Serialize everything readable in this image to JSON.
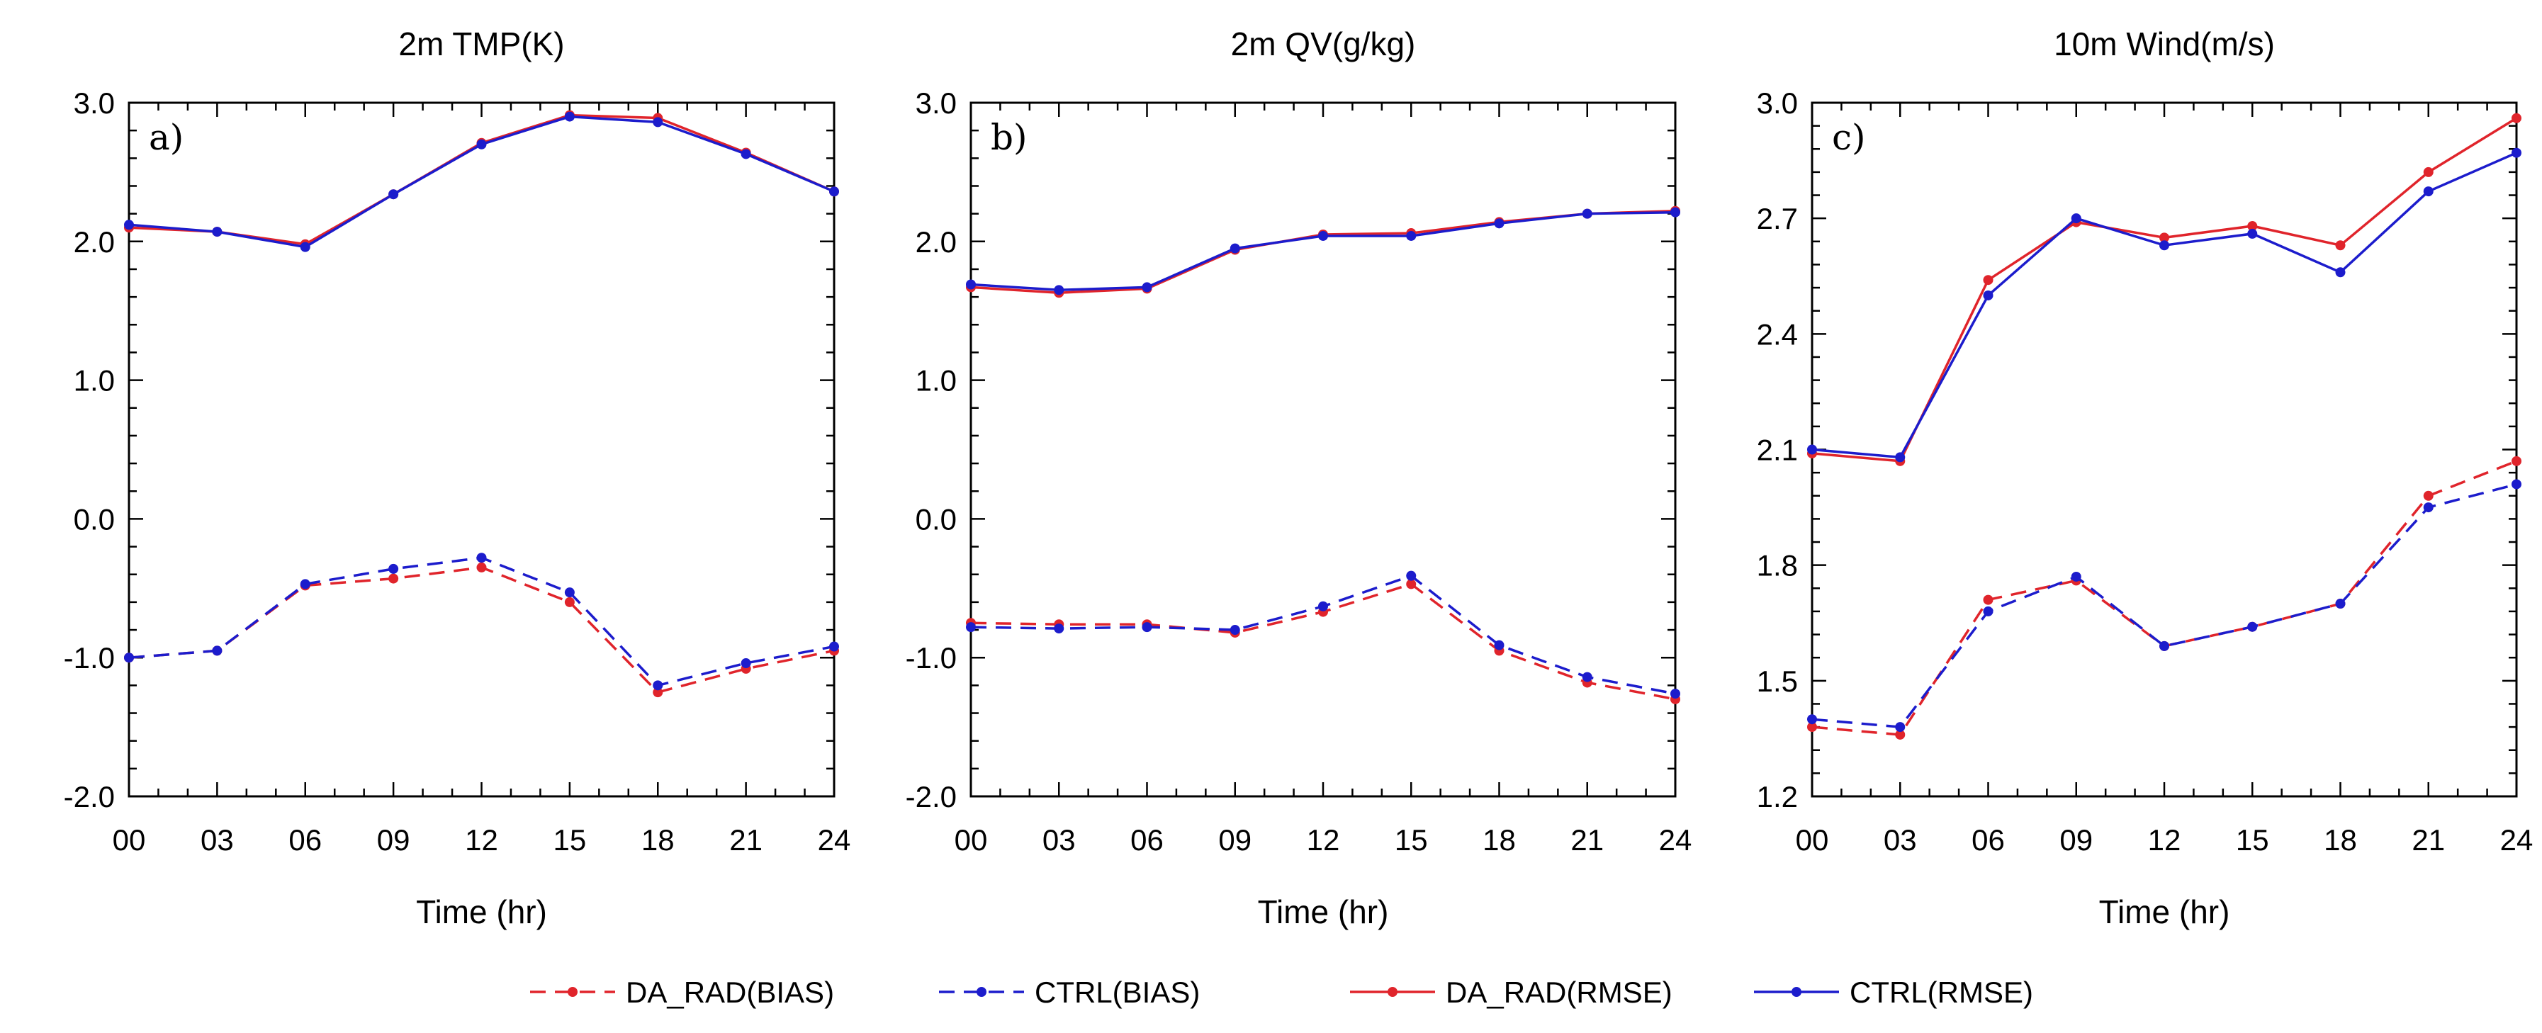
{
  "chart_data": [
    {
      "type": "line",
      "panel_label": "a)",
      "title": "2m TMP(K)",
      "xlabel": "Time (hr)",
      "ylabel": "",
      "ylim": [
        -2.0,
        3.0
      ],
      "yticks": [
        "-2.0",
        "-1.0",
        "0.0",
        "1.0",
        "2.0",
        "3.0"
      ],
      "x": [
        "00",
        "03",
        "06",
        "09",
        "12",
        "15",
        "18",
        "21",
        "24"
      ],
      "series": [
        {
          "name": "DA_RAD(BIAS)",
          "color": "#e0242b",
          "style": "dashed",
          "values": [
            -1.0,
            -0.95,
            -0.48,
            -0.43,
            -0.35,
            -0.6,
            -1.25,
            -1.08,
            -0.95
          ]
        },
        {
          "name": "CTRL(BIAS)",
          "color": "#1c1ccc",
          "style": "dashed",
          "values": [
            -1.0,
            -0.95,
            -0.47,
            -0.36,
            -0.28,
            -0.53,
            -1.2,
            -1.04,
            -0.92
          ]
        },
        {
          "name": "DA_RAD(RMSE)",
          "color": "#e0242b",
          "style": "solid",
          "values": [
            2.1,
            2.07,
            1.98,
            2.34,
            2.71,
            2.91,
            2.89,
            2.64,
            2.36
          ]
        },
        {
          "name": "CTRL(RMSE)",
          "color": "#1c1ccc",
          "style": "solid",
          "values": [
            2.12,
            2.07,
            1.96,
            2.34,
            2.7,
            2.9,
            2.86,
            2.63,
            2.36
          ]
        }
      ]
    },
    {
      "type": "line",
      "panel_label": "b)",
      "title": "2m QV(g/kg)",
      "xlabel": "Time (hr)",
      "ylabel": "",
      "ylim": [
        -2.0,
        3.0
      ],
      "yticks": [
        "-2.0",
        "-1.0",
        "0.0",
        "1.0",
        "2.0",
        "3.0"
      ],
      "x": [
        "00",
        "03",
        "06",
        "09",
        "12",
        "15",
        "18",
        "21",
        "24"
      ],
      "series": [
        {
          "name": "DA_RAD(BIAS)",
          "color": "#e0242b",
          "style": "dashed",
          "values": [
            -0.75,
            -0.76,
            -0.76,
            -0.82,
            -0.67,
            -0.47,
            -0.95,
            -1.18,
            -1.3
          ]
        },
        {
          "name": "CTRL(BIAS)",
          "color": "#1c1ccc",
          "style": "dashed",
          "values": [
            -0.78,
            -0.79,
            -0.78,
            -0.8,
            -0.63,
            -0.41,
            -0.91,
            -1.14,
            -1.26
          ]
        },
        {
          "name": "DA_RAD(RMSE)",
          "color": "#e0242b",
          "style": "solid",
          "values": [
            1.67,
            1.63,
            1.66,
            1.94,
            2.05,
            2.06,
            2.14,
            2.2,
            2.22
          ]
        },
        {
          "name": "CTRL(RMSE)",
          "color": "#1c1ccc",
          "style": "solid",
          "values": [
            1.69,
            1.65,
            1.67,
            1.95,
            2.04,
            2.04,
            2.13,
            2.2,
            2.21
          ]
        }
      ]
    },
    {
      "type": "line",
      "panel_label": "c)",
      "title": "10m Wind(m/s)",
      "xlabel": "Time (hr)",
      "ylabel": "",
      "ylim": [
        1.2,
        3.0
      ],
      "yticks": [
        "1.2",
        "1.5",
        "1.8",
        "2.1",
        "2.4",
        "2.7",
        "3.0"
      ],
      "x": [
        "00",
        "03",
        "06",
        "09",
        "12",
        "15",
        "18",
        "21",
        "24"
      ],
      "series": [
        {
          "name": "DA_RAD(BIAS)",
          "color": "#e0242b",
          "style": "dashed",
          "values": [
            1.38,
            1.36,
            1.71,
            1.76,
            1.59,
            1.64,
            1.7,
            1.98,
            2.07
          ]
        },
        {
          "name": "CTRL(BIAS)",
          "color": "#1c1ccc",
          "style": "dashed",
          "values": [
            1.4,
            1.38,
            1.68,
            1.77,
            1.59,
            1.64,
            1.7,
            1.95,
            2.01
          ]
        },
        {
          "name": "DA_RAD(RMSE)",
          "color": "#e0242b",
          "style": "solid",
          "values": [
            2.09,
            2.07,
            2.54,
            2.69,
            2.65,
            2.68,
            2.63,
            2.82,
            2.96
          ]
        },
        {
          "name": "CTRL(RMSE)",
          "color": "#1c1ccc",
          "style": "solid",
          "values": [
            2.1,
            2.08,
            2.5,
            2.7,
            2.63,
            2.66,
            2.56,
            2.77,
            2.87
          ]
        }
      ]
    }
  ],
  "legend": [
    {
      "label": "DA_RAD(BIAS)",
      "color": "#e0242b",
      "style": "dashed"
    },
    {
      "label": "CTRL(BIAS)",
      "color": "#1c1ccc",
      "style": "dashed"
    },
    {
      "label": "DA_RAD(RMSE)",
      "color": "#e0242b",
      "style": "solid"
    },
    {
      "label": "CTRL(RMSE)",
      "color": "#1c1ccc",
      "style": "solid"
    }
  ]
}
